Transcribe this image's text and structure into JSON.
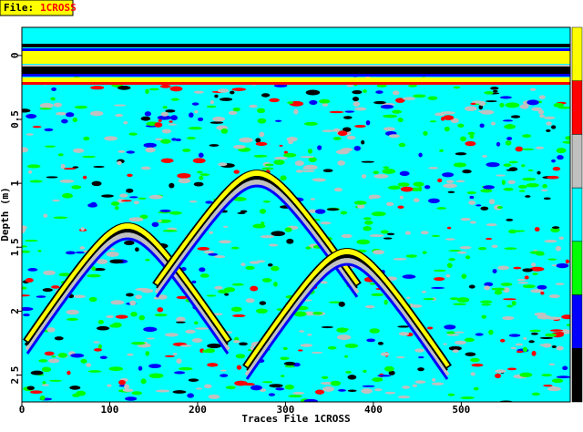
{
  "chart_data": {
    "type": "radargram",
    "file_label": "File:",
    "file_name": "1CROSS",
    "x_label": "Traces File 1CROSS",
    "y_label": "Depth (m)",
    "xlim": [
      0,
      624
    ],
    "xticks": [
      0,
      100,
      200,
      300,
      400,
      500
    ],
    "ylim": [
      -0.22,
      2.71
    ],
    "yticks": [
      0,
      0.5,
      1,
      1.5,
      2,
      2.5
    ],
    "colors": [
      "#ffff00",
      "#ff0000",
      "#c0c0c0",
      "#00ffff",
      "#00ff00",
      "#0000ff",
      "#000000"
    ]
  }
}
